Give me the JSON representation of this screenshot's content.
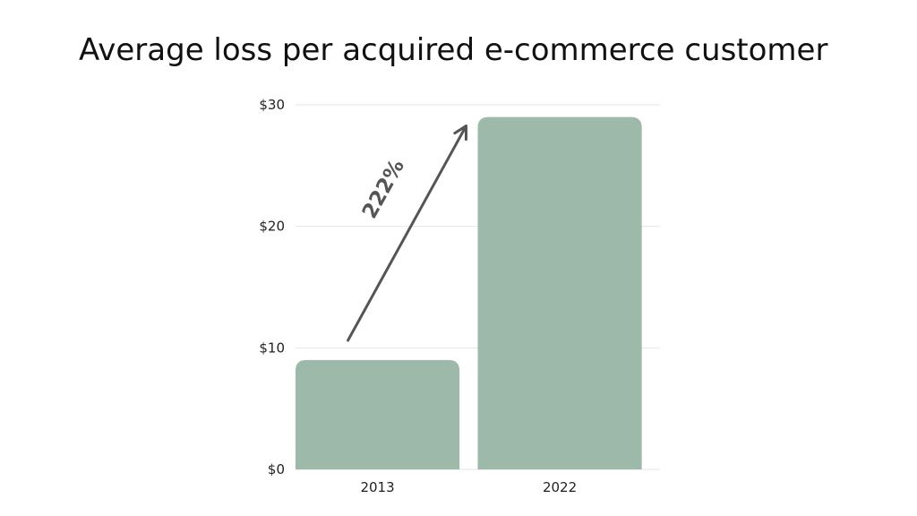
{
  "chart_data": {
    "type": "bar",
    "title": "Average loss per acquired e-commerce customer",
    "categories": [
      "2013",
      "2022"
    ],
    "values": [
      9,
      29
    ],
    "ylim": [
      0,
      30
    ],
    "yticks": [
      "$0",
      "$10",
      "$20",
      "$30"
    ],
    "ytick_values": [
      0,
      10,
      20,
      30
    ],
    "grid": true,
    "annotation": "222%",
    "colors": {
      "bar": "#9db9aa",
      "grid": "#e6e6e6",
      "arrow": "#555555"
    }
  }
}
